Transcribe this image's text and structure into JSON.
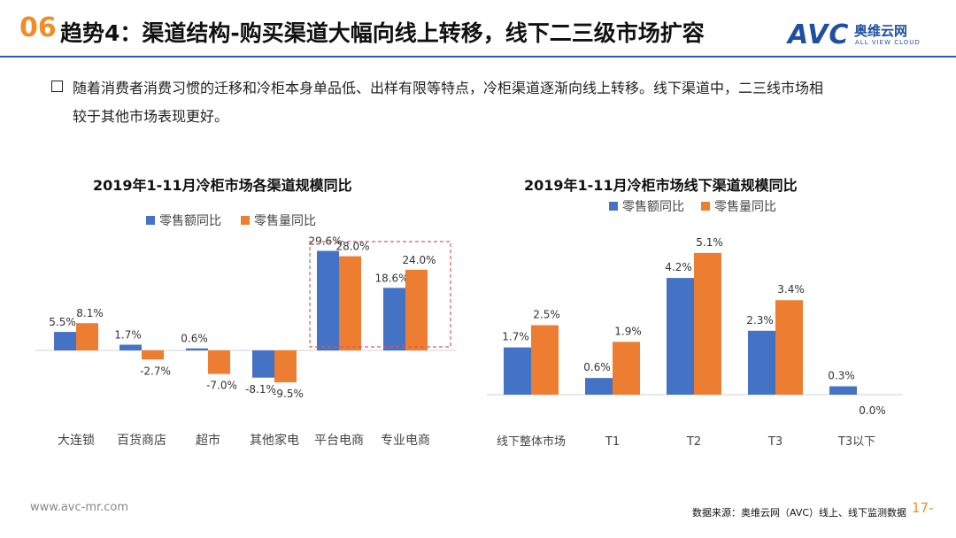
{
  "header": {
    "number": "06",
    "title": "趋势4：渠道结构-购买渠道大幅向线上转移，线下二三级市场扩容",
    "logo_avc": "AVC",
    "logo_cn": "奥维云网",
    "logo_en": "ALL VIEW CLOUD"
  },
  "bullet": {
    "line1": "随着消费者消费习惯的迁移和冷柜本身单品低、出样有限等特点，冷柜渠道逐渐向线上转移。线下渠道中，二三线市场相",
    "line2": "较于其他市场表现更好。"
  },
  "chart_data": [
    {
      "type": "bar",
      "title": "2019年1-11月冷柜市场各渠道规模同比",
      "categories": [
        "大连锁",
        "百货商店",
        "超市",
        "其他家电",
        "平台电商",
        "专业电商"
      ],
      "series": [
        {
          "name": "零售额同比",
          "values": [
            5.5,
            1.7,
            0.6,
            -8.1,
            29.6,
            18.6
          ],
          "labels": [
            "5.5%",
            "1.7%",
            "0.6%",
            "-8.1%",
            "29.6%",
            "18.6%"
          ]
        },
        {
          "name": "零售量同比",
          "values": [
            8.1,
            -2.7,
            -7.0,
            -9.5,
            28.0,
            24.0
          ],
          "labels": [
            "8.1%",
            "-2.7%",
            "-7.0%",
            "-9.5%",
            "28.0%",
            "24.0%"
          ]
        }
      ],
      "highlight": [
        "平台电商",
        "专业电商"
      ],
      "ylim": [
        -12,
        30
      ]
    },
    {
      "type": "bar",
      "title": "2019年1-11月冷柜市场线下渠道规模同比",
      "categories": [
        "线下整体市场",
        "T1",
        "T2",
        "T3",
        "T3以下"
      ],
      "series": [
        {
          "name": "零售额同比",
          "values": [
            1.7,
            0.6,
            4.2,
            2.3,
            0.3
          ],
          "labels": [
            "1.7%",
            "0.6%",
            "4.2%",
            "2.3%",
            "0.3%"
          ]
        },
        {
          "name": "零售量同比",
          "values": [
            2.5,
            1.9,
            5.1,
            3.4,
            0.0
          ],
          "labels": [
            "2.5%",
            "1.9%",
            "5.1%",
            "3.4%",
            "0.0%"
          ]
        }
      ],
      "ylim": [
        0,
        5.1
      ]
    }
  ],
  "colors": {
    "series1": "#4472C4",
    "series2": "#ED7D31",
    "highlight_box": "#E05A5A",
    "accent": "#F28C28",
    "brand": "#1E4FA3"
  },
  "footer": {
    "url": "www.avc-mr.com",
    "source": "数据来源：奥维云网（AVC）线上、线下监测数据",
    "page": "17-"
  }
}
